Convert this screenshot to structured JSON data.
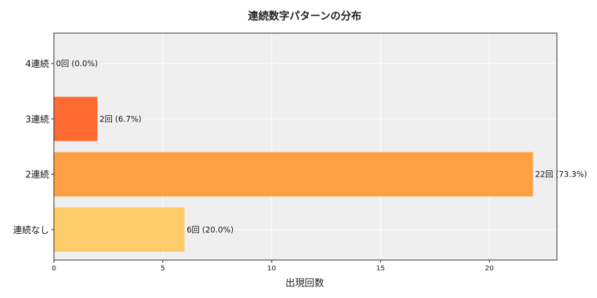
{
  "chart_data": {
    "type": "bar",
    "orientation": "horizontal",
    "title": "連続数字パターンの分布",
    "xlabel": "出現回数",
    "ylabel": "",
    "categories": [
      "連続なし",
      "2連続",
      "3連続",
      "4連続"
    ],
    "values": [
      6,
      22,
      2,
      0
    ],
    "data_labels": [
      "6回 (20.0%)",
      "22回 (73.3%)",
      "2回 (6.7%)",
      "0回 (0.0%)"
    ],
    "bar_colors": [
      "#FECB6A",
      "#FDA044",
      "#FF6B33",
      "#FF4422"
    ],
    "xlim": [
      0,
      23.1
    ],
    "xticks": [
      0,
      5,
      10,
      15,
      20
    ],
    "grid": true,
    "background": "#EFEFEF"
  }
}
